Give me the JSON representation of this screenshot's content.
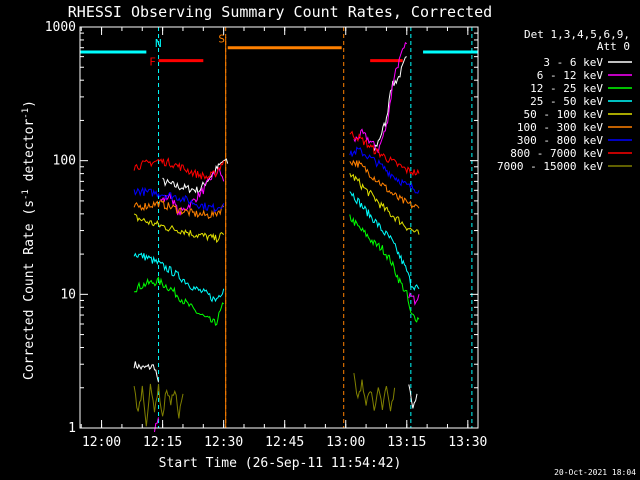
{
  "chart_data": {
    "type": "line",
    "title": "RHESSI Observing Summary Count Rates, Corrected",
    "xlabel": "Start Time (26-Sep-11 11:54:42)",
    "ylabel_main": "Corrected Count Rate (s",
    "ylabel_sup": "-1",
    "ylabel_tail": " detector",
    "ylabel_sup2": "-1",
    "ylabel_end": ")",
    "yscale": "log",
    "ylim": [
      1,
      1000
    ],
    "xlim": [
      "11:54:42",
      "13:32:30"
    ],
    "x_ticks": [
      "12:00",
      "12:15",
      "12:30",
      "12:45",
      "13:00",
      "13:15",
      "13:30"
    ],
    "y_ticks": [
      "1",
      "10",
      "100",
      "1000"
    ],
    "legend_header": [
      "Det 1,3,4,5,6,9,",
      "Att 0"
    ],
    "timestamp": "20-Oct-2021 18:04",
    "series": [
      {
        "name": "3 - 6 keV",
        "color": "#ffffff",
        "segments": [
          [
            [
              "12:08",
              3
            ],
            [
              "12:10",
              2.8
            ],
            [
              "12:13",
              2.9
            ],
            [
              "12:14",
              2.2
            ]
          ],
          [
            [
              "12:15",
              70
            ],
            [
              "12:18",
              65
            ],
            [
              "12:21",
              62
            ],
            [
              "12:24",
              60
            ],
            [
              "12:27",
              78
            ],
            [
              "12:29",
              92
            ],
            [
              "12:30",
              100
            ],
            [
              "12:31",
              95
            ]
          ],
          [
            [
              "13:07",
              120
            ],
            [
              "13:08",
              140
            ],
            [
              "13:10",
              200
            ],
            [
              "13:11",
              350
            ],
            [
              "13:13",
              420
            ],
            [
              "13:14",
              500
            ],
            [
              "13:15",
              600
            ]
          ],
          [
            [
              "13:15.5",
              2
            ],
            [
              "13:16.5",
              1.5
            ],
            [
              "13:17.5",
              1.8
            ]
          ]
        ]
      },
      {
        "name": "6 - 12 keV",
        "color": "#ff00ff",
        "segments": [
          [
            [
              "12:13",
              1
            ],
            [
              "12:14",
              1.2
            ]
          ],
          [
            [
              "12:14.5",
              50
            ],
            [
              "12:17",
              55
            ],
            [
              "12:19",
              40
            ],
            [
              "12:22",
              48
            ],
            [
              "12:25",
              60
            ],
            [
              "12:27",
              75
            ],
            [
              "12:29",
              85
            ],
            [
              "12:30",
              70
            ]
          ],
          [
            [
              "13:02",
              140
            ],
            [
              "13:04",
              160
            ],
            [
              "13:06",
              140
            ],
            [
              "13:08",
              120
            ],
            [
              "13:10",
              180
            ],
            [
              "13:12",
              450
            ],
            [
              "13:14",
              650
            ],
            [
              "13:15",
              750
            ]
          ],
          [
            [
              "13:15.5",
              10
            ],
            [
              "13:17",
              9
            ],
            [
              "13:18",
              10
            ]
          ]
        ]
      },
      {
        "name": "12 - 25 keV",
        "color": "#00ff00",
        "segments": [
          [
            [
              "12:08",
              11
            ],
            [
              "12:11",
              12
            ],
            [
              "12:14",
              12.5
            ],
            [
              "12:17",
              11
            ],
            [
              "12:20",
              9
            ],
            [
              "12:23",
              7.5
            ],
            [
              "12:26",
              6.5
            ],
            [
              "12:28",
              6
            ],
            [
              "12:30",
              8.5
            ]
          ],
          [
            [
              "13:01",
              38
            ],
            [
              "13:03",
              32
            ],
            [
              "13:05",
              28
            ],
            [
              "13:07",
              24
            ],
            [
              "13:09",
              22
            ],
            [
              "13:11",
              18
            ],
            [
              "13:13",
              13
            ],
            [
              "13:15",
              10
            ],
            [
              "13:16",
              7
            ],
            [
              "13:18",
              6.5
            ]
          ]
        ]
      },
      {
        "name": "25 - 50 keV",
        "color": "#00ffff",
        "segments": [
          [
            [
              "12:08",
              20
            ],
            [
              "12:11",
              19
            ],
            [
              "12:14",
              17
            ],
            [
              "12:17",
              15
            ],
            [
              "12:20",
              13
            ],
            [
              "12:23",
              11
            ],
            [
              "12:26",
              10
            ],
            [
              "12:28",
              9
            ],
            [
              "12:30",
              11
            ]
          ],
          [
            [
              "13:01",
              60
            ],
            [
              "13:03",
              50
            ],
            [
              "13:05",
              42
            ],
            [
              "13:07",
              36
            ],
            [
              "13:09",
              30
            ],
            [
              "13:11",
              26
            ],
            [
              "13:13",
              20
            ],
            [
              "13:15",
              15
            ],
            [
              "13:16",
              12
            ],
            [
              "13:18",
              11
            ]
          ]
        ]
      },
      {
        "name": "50 - 100 keV",
        "color": "#e0e000",
        "segments": [
          [
            [
              "12:08",
              38
            ],
            [
              "12:11",
              35
            ],
            [
              "12:14",
              33
            ],
            [
              "12:17",
              31
            ],
            [
              "12:20",
              30
            ],
            [
              "12:23",
              28
            ],
            [
              "12:26",
              27
            ],
            [
              "12:28",
              26
            ],
            [
              "12:30",
              28
            ]
          ],
          [
            [
              "13:01",
              80
            ],
            [
              "13:03",
              70
            ],
            [
              "13:05",
              60
            ],
            [
              "13:07",
              53
            ],
            [
              "13:09",
              45
            ],
            [
              "13:11",
              40
            ],
            [
              "13:13",
              36
            ],
            [
              "13:15",
              32
            ],
            [
              "13:18",
              28
            ]
          ]
        ]
      },
      {
        "name": "100 - 300 keV",
        "color": "#ff8000",
        "segments": [
          [
            [
              "12:08",
              45
            ],
            [
              "12:11",
              46
            ],
            [
              "12:14",
              48
            ],
            [
              "12:17",
              45
            ],
            [
              "12:20",
              42
            ],
            [
              "12:23",
              40
            ],
            [
              "12:26",
              39
            ],
            [
              "12:28",
              40
            ],
            [
              "12:30",
              45
            ]
          ],
          [
            [
              "13:01",
              100
            ],
            [
              "13:03",
              95
            ],
            [
              "13:05",
              85
            ],
            [
              "13:07",
              75
            ],
            [
              "13:09",
              66
            ],
            [
              "13:11",
              58
            ],
            [
              "13:13",
              52
            ],
            [
              "13:15",
              48
            ],
            [
              "13:18",
              44
            ]
          ]
        ]
      },
      {
        "name": "300 - 800 keV",
        "color": "#0000ff",
        "segments": [
          [
            [
              "12:08",
              60
            ],
            [
              "12:11",
              58
            ],
            [
              "12:14",
              57
            ],
            [
              "12:17",
              55
            ],
            [
              "12:20",
              52
            ],
            [
              "12:23",
              48
            ],
            [
              "12:26",
              45
            ],
            [
              "12:28",
              44
            ],
            [
              "12:30",
              48
            ]
          ],
          [
            [
              "13:01",
              110
            ],
            [
              "13:03",
              120
            ],
            [
              "13:05",
              110
            ],
            [
              "13:07",
              100
            ],
            [
              "13:09",
              90
            ],
            [
              "13:11",
              80
            ],
            [
              "13:13",
              72
            ],
            [
              "13:15",
              65
            ],
            [
              "13:18",
              60
            ]
          ]
        ]
      },
      {
        "name": "800 - 7000 keV",
        "color": "#ff0000",
        "segments": [
          [
            [
              "12:08",
              90
            ],
            [
              "12:11",
              95
            ],
            [
              "12:14",
              100
            ],
            [
              "12:17",
              96
            ],
            [
              "12:20",
              88
            ],
            [
              "12:23",
              80
            ],
            [
              "12:26",
              75
            ],
            [
              "12:28",
              80
            ],
            [
              "12:30",
              100
            ]
          ],
          [
            [
              "13:01",
              160
            ],
            [
              "13:03",
              150
            ],
            [
              "13:05",
              135
            ],
            [
              "13:07",
              120
            ],
            [
              "13:09",
              110
            ],
            [
              "13:11",
              100
            ],
            [
              "13:13",
              92
            ],
            [
              "13:15",
              85
            ],
            [
              "13:18",
              80
            ]
          ]
        ]
      },
      {
        "name": "7000 - 15000 keV",
        "color": "#808000",
        "segments": [
          [
            [
              "12:08",
              2
            ],
            [
              "12:09",
              1.3
            ],
            [
              "12:10",
              2
            ],
            [
              "12:11",
              1.1
            ],
            [
              "12:12",
              2
            ],
            [
              "12:13",
              1.4
            ],
            [
              "12:14",
              2
            ],
            [
              "12:15",
              1.2
            ],
            [
              "12:16",
              2
            ],
            [
              "12:17",
              1.5
            ],
            [
              "12:18",
              2
            ],
            [
              "12:19",
              1.2
            ],
            [
              "12:20",
              1.8
            ]
          ],
          [
            [
              "13:02",
              2.5
            ],
            [
              "13:03",
              1.6
            ],
            [
              "13:04",
              2.3
            ],
            [
              "13:05",
              1.5
            ],
            [
              "13:06",
              2
            ],
            [
              "13:07",
              1.3
            ],
            [
              "13:08",
              2
            ],
            [
              "13:09",
              1.4
            ],
            [
              "13:10",
              2
            ],
            [
              "13:11",
              1.3
            ],
            [
              "13:12",
              2
            ]
          ]
        ]
      }
    ],
    "annotations": {
      "night": {
        "label": "N",
        "color": "#00ffff",
        "bars": [
          [
            "11:54:42",
            "12:11"
          ],
          [
            "13:19",
            "13:32:30"
          ]
        ],
        "y": 650,
        "lines": [
          "12:14",
          "13:16",
          "13:31"
        ]
      },
      "flare": {
        "label": "F",
        "color": "#ff0000",
        "bars": [
          [
            "12:14",
            "12:25"
          ],
          [
            "13:06",
            "13:14"
          ]
        ],
        "y": 560
      },
      "saa": {
        "label": "S",
        "color": "#ff8000",
        "bars": [
          [
            "12:31",
            "12:59"
          ]
        ],
        "y": 700,
        "lines": [
          "12:30.5",
          "12:59.5"
        ]
      }
    }
  }
}
